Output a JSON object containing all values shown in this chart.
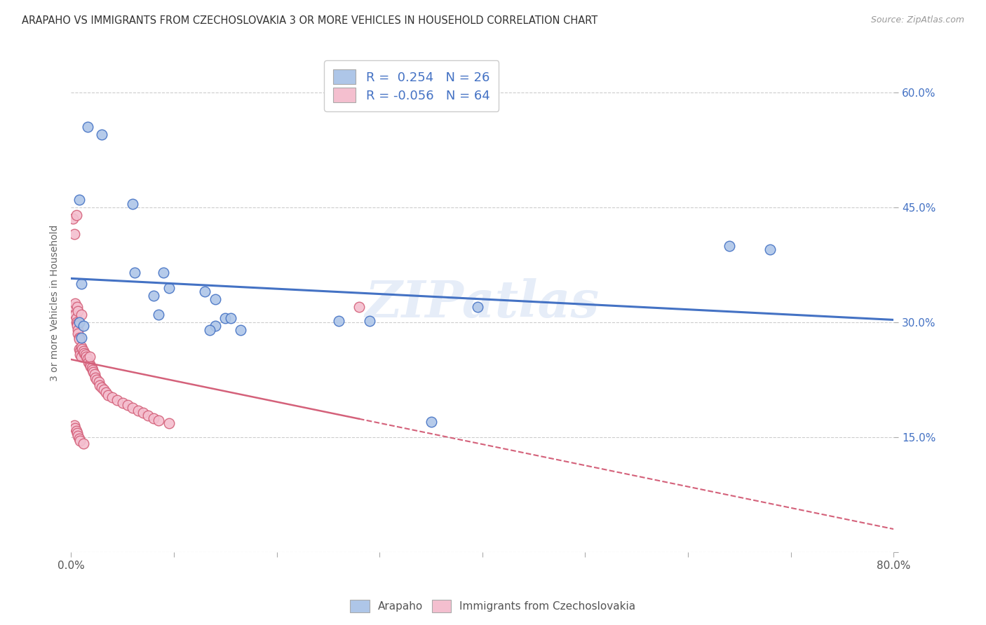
{
  "title": "ARAPAHO VS IMMIGRANTS FROM CZECHOSLOVAKIA 3 OR MORE VEHICLES IN HOUSEHOLD CORRELATION CHART",
  "source": "Source: ZipAtlas.com",
  "ylabel": "3 or more Vehicles in Household",
  "xlim": [
    0.0,
    0.8
  ],
  "ylim": [
    0.0,
    0.65
  ],
  "xticks": [
    0.0,
    0.1,
    0.2,
    0.3,
    0.4,
    0.5,
    0.6,
    0.7,
    0.8
  ],
  "xticklabels": [
    "0.0%",
    "",
    "",
    "",
    "",
    "",
    "",
    "",
    "80.0%"
  ],
  "yticks": [
    0.0,
    0.15,
    0.3,
    0.45,
    0.6
  ],
  "yticklabels": [
    "",
    "15.0%",
    "30.0%",
    "45.0%",
    "60.0%"
  ],
  "blue_R": 0.254,
  "blue_N": 26,
  "pink_R": -0.056,
  "pink_N": 64,
  "blue_color": "#aec6e8",
  "pink_color": "#f4bfcf",
  "blue_line_color": "#4472C4",
  "pink_line_color": "#d4617a",
  "watermark": "ZIPatlas",
  "blue_scatter_x": [
    0.016,
    0.03,
    0.008,
    0.06,
    0.01,
    0.062,
    0.09,
    0.095,
    0.08,
    0.085,
    0.13,
    0.14,
    0.15,
    0.155,
    0.165,
    0.14,
    0.135,
    0.29,
    0.35,
    0.64,
    0.68,
    0.008,
    0.012,
    0.01,
    0.26,
    0.395
  ],
  "blue_scatter_y": [
    0.555,
    0.545,
    0.46,
    0.455,
    0.35,
    0.365,
    0.365,
    0.345,
    0.335,
    0.31,
    0.34,
    0.33,
    0.305,
    0.305,
    0.29,
    0.295,
    0.29,
    0.302,
    0.17,
    0.4,
    0.395,
    0.3,
    0.295,
    0.28,
    0.302,
    0.32
  ],
  "pink_scatter_x": [
    0.002,
    0.003,
    0.003,
    0.004,
    0.004,
    0.005,
    0.005,
    0.005,
    0.006,
    0.006,
    0.006,
    0.007,
    0.007,
    0.007,
    0.008,
    0.008,
    0.008,
    0.009,
    0.009,
    0.01,
    0.01,
    0.01,
    0.011,
    0.012,
    0.013,
    0.014,
    0.015,
    0.016,
    0.017,
    0.018,
    0.018,
    0.019,
    0.02,
    0.021,
    0.022,
    0.023,
    0.024,
    0.025,
    0.027,
    0.028,
    0.03,
    0.032,
    0.034,
    0.036,
    0.04,
    0.045,
    0.05,
    0.055,
    0.06,
    0.065,
    0.07,
    0.075,
    0.08,
    0.085,
    0.003,
    0.004,
    0.005,
    0.006,
    0.007,
    0.008,
    0.009,
    0.012,
    0.28,
    0.095
  ],
  "pink_scatter_y": [
    0.435,
    0.415,
    0.32,
    0.325,
    0.31,
    0.305,
    0.3,
    0.44,
    0.298,
    0.295,
    0.32,
    0.29,
    0.285,
    0.315,
    0.28,
    0.278,
    0.265,
    0.262,
    0.258,
    0.255,
    0.268,
    0.31,
    0.265,
    0.262,
    0.26,
    0.258,
    0.255,
    0.252,
    0.248,
    0.245,
    0.255,
    0.242,
    0.24,
    0.238,
    0.235,
    0.232,
    0.228,
    0.225,
    0.222,
    0.218,
    0.215,
    0.212,
    0.208,
    0.205,
    0.202,
    0.198,
    0.195,
    0.192,
    0.188,
    0.185,
    0.182,
    0.178,
    0.175,
    0.172,
    0.165,
    0.162,
    0.158,
    0.155,
    0.152,
    0.148,
    0.145,
    0.142,
    0.32,
    0.168
  ]
}
